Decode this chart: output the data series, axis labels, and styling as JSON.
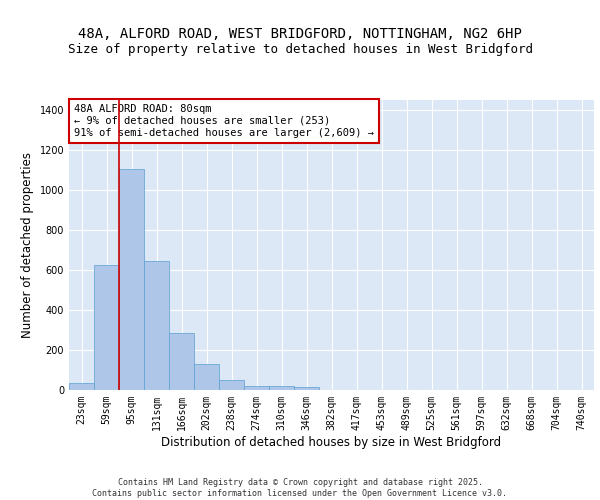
{
  "title1": "48A, ALFORD ROAD, WEST BRIDGFORD, NOTTINGHAM, NG2 6HP",
  "title2": "Size of property relative to detached houses in West Bridgford",
  "xlabel": "Distribution of detached houses by size in West Bridgford",
  "ylabel": "Number of detached properties",
  "categories": [
    "23sqm",
    "59sqm",
    "95sqm",
    "131sqm",
    "166sqm",
    "202sqm",
    "238sqm",
    "274sqm",
    "310sqm",
    "346sqm",
    "382sqm",
    "417sqm",
    "453sqm",
    "489sqm",
    "525sqm",
    "561sqm",
    "597sqm",
    "632sqm",
    "668sqm",
    "704sqm",
    "740sqm"
  ],
  "values": [
    35,
    625,
    1105,
    645,
    285,
    130,
    50,
    20,
    20,
    15,
    0,
    0,
    0,
    0,
    0,
    0,
    0,
    0,
    0,
    0,
    0
  ],
  "bar_color": "#aec6e8",
  "bar_edge_color": "#5a9fd4",
  "bg_color": "#dce8f5",
  "grid_color": "#ffffff",
  "vline_x": 1.5,
  "vline_color": "#cc0000",
  "annotation_text": "48A ALFORD ROAD: 80sqm\n← 9% of detached houses are smaller (253)\n91% of semi-detached houses are larger (2,609) →",
  "annotation_box_color": "#cc0000",
  "ylim": [
    0,
    1450
  ],
  "yticks": [
    0,
    200,
    400,
    600,
    800,
    1000,
    1200,
    1400
  ],
  "footer": "Contains HM Land Registry data © Crown copyright and database right 2025.\nContains public sector information licensed under the Open Government Licence v3.0.",
  "title_fontsize": 10,
  "subtitle_fontsize": 9,
  "tick_fontsize": 7,
  "ylabel_fontsize": 8.5,
  "xlabel_fontsize": 8.5
}
